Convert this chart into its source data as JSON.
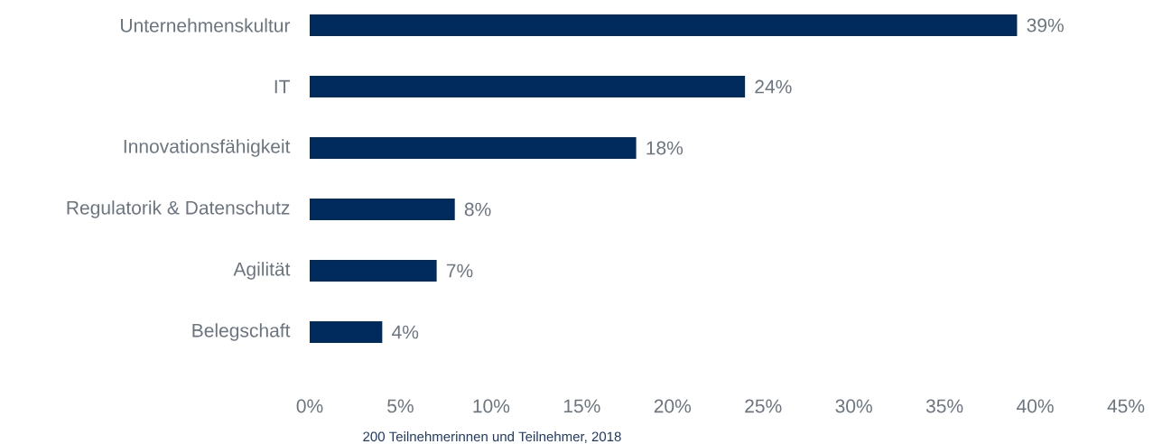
{
  "chart_data": {
    "type": "bar",
    "orientation": "horizontal",
    "categories": [
      "Unternehmenskultur",
      "IT",
      "Innovationsfähigkeit",
      "Regulatorik & Datenschutz",
      "Agilität",
      "Belegschaft"
    ],
    "values": [
      39,
      24,
      18,
      8,
      7,
      4
    ],
    "value_labels": [
      "39%",
      "24%",
      "18%",
      "8%",
      "7%",
      "4%"
    ],
    "color": "#002b5c",
    "xlim": [
      0,
      45
    ],
    "xticks": [
      {
        "value": 0,
        "label": "0%"
      },
      {
        "value": 5,
        "label": "5%"
      },
      {
        "value": 10,
        "label": "10%"
      },
      {
        "value": 15,
        "label": "15%"
      },
      {
        "value": 20,
        "label": "20%"
      },
      {
        "value": 25,
        "label": "25%"
      },
      {
        "value": 30,
        "label": "30%"
      },
      {
        "value": 35,
        "label": "35%"
      },
      {
        "value": 40,
        "label": "40%"
      },
      {
        "value": 45,
        "label": "45%"
      }
    ],
    "grid": false,
    "annotations": [
      "200 Teilnehmerinnen und Teilnehmer, 2018"
    ]
  }
}
